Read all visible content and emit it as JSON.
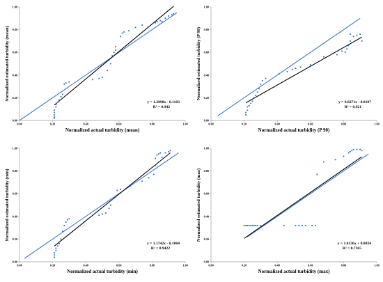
{
  "chart_data": [
    {
      "type": "scatter",
      "xlabel": "Normalized actual turbidity (mean)",
      "ylabel": "Normalized estimated turbidity  (mean)",
      "equation": "y = 1.2098x - 0.1183",
      "r2": "R² = 0.942",
      "xlim": [
        0,
        1
      ],
      "ylim": [
        0,
        1
      ],
      "xticks": [
        "0.00",
        "0.20",
        "0.40",
        "0.60",
        "0.80",
        "1.00"
      ],
      "yticks": [
        "0.00",
        "0.20",
        "0.40",
        "0.60",
        "0.80",
        "1.00"
      ],
      "grid": false,
      "trendline": {
        "slope": 1.2098,
        "intercept": -0.1183,
        "x": [
          0.21,
          0.93
        ]
      },
      "identity_line": {
        "x": [
          0.0,
          0.95
        ]
      },
      "points": [
        [
          0.21,
          0.02
        ],
        [
          0.21,
          0.03
        ],
        [
          0.21,
          0.05
        ],
        [
          0.21,
          0.07
        ],
        [
          0.21,
          0.09
        ],
        [
          0.22,
          0.12
        ],
        [
          0.22,
          0.14
        ],
        [
          0.23,
          0.16
        ],
        [
          0.24,
          0.18
        ],
        [
          0.25,
          0.21
        ],
        [
          0.26,
          0.23
        ],
        [
          0.27,
          0.32
        ],
        [
          0.28,
          0.33
        ],
        [
          0.3,
          0.34
        ],
        [
          0.44,
          0.36
        ],
        [
          0.48,
          0.37
        ],
        [
          0.5,
          0.38
        ],
        [
          0.53,
          0.44
        ],
        [
          0.55,
          0.5
        ],
        [
          0.56,
          0.57
        ],
        [
          0.57,
          0.6
        ],
        [
          0.58,
          0.62
        ],
        [
          0.58,
          0.65
        ],
        [
          0.61,
          0.74
        ],
        [
          0.62,
          0.77
        ],
        [
          0.63,
          0.78
        ],
        [
          0.66,
          0.79
        ],
        [
          0.7,
          0.82
        ],
        [
          0.74,
          0.84
        ],
        [
          0.82,
          0.86
        ],
        [
          0.83,
          0.87
        ],
        [
          0.85,
          0.88
        ],
        [
          0.86,
          0.87
        ],
        [
          0.88,
          0.9
        ],
        [
          0.9,
          0.92
        ],
        [
          0.92,
          0.93
        ],
        [
          0.93,
          0.94
        ]
      ]
    },
    {
      "type": "scatter",
      "xlabel": "Normalized actual turbidity (P 90)",
      "ylabel": "Normalized estimated turbidity  (P 90)",
      "equation": "y = 0.8271x - 0.0187",
      "r2": "R² = 0.921",
      "xlim": [
        0,
        1
      ],
      "ylim": [
        0,
        1
      ],
      "xticks": [
        "0.00",
        "0.20",
        "0.40",
        "0.60",
        "0.80",
        "1.00"
      ],
      "yticks": [
        "0.00",
        "0.20",
        "0.40",
        "0.60",
        "0.80",
        "1.00"
      ],
      "grid": false,
      "trendline": {
        "slope": 0.8271,
        "intercept": -0.0187,
        "x": [
          0.21,
          0.91
        ]
      },
      "identity_line": {
        "x": [
          0.04,
          0.9
        ]
      },
      "points": [
        [
          0.21,
          0.05
        ],
        [
          0.21,
          0.07
        ],
        [
          0.22,
          0.09
        ],
        [
          0.22,
          0.12
        ],
        [
          0.23,
          0.13
        ],
        [
          0.24,
          0.15
        ],
        [
          0.25,
          0.17
        ],
        [
          0.26,
          0.2
        ],
        [
          0.27,
          0.22
        ],
        [
          0.28,
          0.25
        ],
        [
          0.29,
          0.28
        ],
        [
          0.3,
          0.32
        ],
        [
          0.31,
          0.35
        ],
        [
          0.33,
          0.37
        ],
        [
          0.41,
          0.41
        ],
        [
          0.46,
          0.43
        ],
        [
          0.49,
          0.45
        ],
        [
          0.51,
          0.46
        ],
        [
          0.54,
          0.47
        ],
        [
          0.6,
          0.49
        ],
        [
          0.68,
          0.56
        ],
        [
          0.76,
          0.58
        ],
        [
          0.79,
          0.61
        ],
        [
          0.81,
          0.6
        ],
        [
          0.82,
          0.63
        ],
        [
          0.83,
          0.66
        ],
        [
          0.84,
          0.7
        ],
        [
          0.84,
          0.76
        ],
        [
          0.86,
          0.74
        ],
        [
          0.88,
          0.75
        ],
        [
          0.9,
          0.76
        ],
        [
          0.91,
          0.7
        ]
      ]
    },
    {
      "type": "scatter",
      "xlabel": "Normalized actual turbidity (min)",
      "ylabel": "Normalized estimated turbidity  (min)",
      "equation": "y = 1.1742x - 0.1084",
      "r2": "R² = 0.9422",
      "xlim": [
        0,
        1
      ],
      "ylim": [
        0,
        1
      ],
      "xticks": [
        "0.00",
        "0.20",
        "0.40",
        "0.60",
        "0.80",
        "1.00"
      ],
      "yticks": [
        "0.00",
        "0.20",
        "0.40",
        "0.60",
        "0.80",
        "1.00"
      ],
      "grid": false,
      "trendline": {
        "slope": 1.1742,
        "intercept": -0.1084,
        "x": [
          0.21,
          0.91
        ]
      },
      "identity_line": {
        "x": [
          0.03,
          0.96
        ]
      },
      "points": [
        [
          0.21,
          0.04
        ],
        [
          0.21,
          0.06
        ],
        [
          0.21,
          0.08
        ],
        [
          0.22,
          0.1
        ],
        [
          0.22,
          0.12
        ],
        [
          0.23,
          0.14
        ],
        [
          0.24,
          0.16
        ],
        [
          0.25,
          0.2
        ],
        [
          0.26,
          0.27
        ],
        [
          0.27,
          0.32
        ],
        [
          0.28,
          0.35
        ],
        [
          0.29,
          0.37
        ],
        [
          0.3,
          0.38
        ],
        [
          0.48,
          0.41
        ],
        [
          0.5,
          0.42
        ],
        [
          0.52,
          0.43
        ],
        [
          0.54,
          0.47
        ],
        [
          0.55,
          0.5
        ],
        [
          0.56,
          0.55
        ],
        [
          0.58,
          0.57
        ],
        [
          0.59,
          0.63
        ],
        [
          0.61,
          0.64
        ],
        [
          0.67,
          0.67
        ],
        [
          0.74,
          0.71
        ],
        [
          0.78,
          0.74
        ],
        [
          0.81,
          0.77
        ],
        [
          0.82,
          0.85
        ],
        [
          0.82,
          0.91
        ],
        [
          0.83,
          0.94
        ],
        [
          0.84,
          0.95
        ],
        [
          0.85,
          0.96
        ],
        [
          0.86,
          0.92
        ],
        [
          0.88,
          0.96
        ],
        [
          0.9,
          0.97
        ],
        [
          0.91,
          0.98
        ]
      ]
    },
    {
      "type": "scatter",
      "xlabel": "Normalized actual turbidity (max)",
      "ylabel": "Normalized estimated turbidity  (max)",
      "equation": "y = 1.0136x + 0.0034",
      "r2": "R² = 0.7365",
      "xlim": [
        0,
        1
      ],
      "ylim": [
        0,
        1
      ],
      "xticks": [
        "0.00",
        "0.20",
        "0.40",
        "0.60",
        "0.80",
        "1.00"
      ],
      "yticks": [
        "0.00",
        "0.20",
        "0.40",
        "0.60",
        "0.80",
        "1.00"
      ],
      "grid": false,
      "trendline": {
        "slope": 1.0136,
        "intercept": 0.0034,
        "x": [
          0.2,
          0.91
        ]
      },
      "identity_line": {
        "x": [
          0.22,
          0.95
        ]
      },
      "points": [
        [
          0.2,
          0.32
        ],
        [
          0.21,
          0.32
        ],
        [
          0.22,
          0.32
        ],
        [
          0.23,
          0.32
        ],
        [
          0.24,
          0.32
        ],
        [
          0.25,
          0.32
        ],
        [
          0.26,
          0.32
        ],
        [
          0.27,
          0.32
        ],
        [
          0.28,
          0.32
        ],
        [
          0.3,
          0.32
        ],
        [
          0.44,
          0.32
        ],
        [
          0.51,
          0.32
        ],
        [
          0.53,
          0.32
        ],
        [
          0.55,
          0.32
        ],
        [
          0.57,
          0.32
        ],
        [
          0.61,
          0.32
        ],
        [
          0.63,
          0.32
        ],
        [
          0.64,
          0.77
        ],
        [
          0.68,
          0.88
        ],
        [
          0.75,
          0.9
        ],
        [
          0.8,
          0.93
        ],
        [
          0.83,
          0.96
        ],
        [
          0.84,
          0.97
        ],
        [
          0.85,
          0.98
        ],
        [
          0.86,
          0.99
        ],
        [
          0.88,
          0.99
        ],
        [
          0.9,
          0.99
        ],
        [
          0.91,
          0.98
        ]
      ]
    }
  ],
  "style": {
    "point_color": "#2E6FC7",
    "identity_line_color": "#3F79C9",
    "trend_line_color": "#000000",
    "axis_color": "#9A9A9A"
  }
}
